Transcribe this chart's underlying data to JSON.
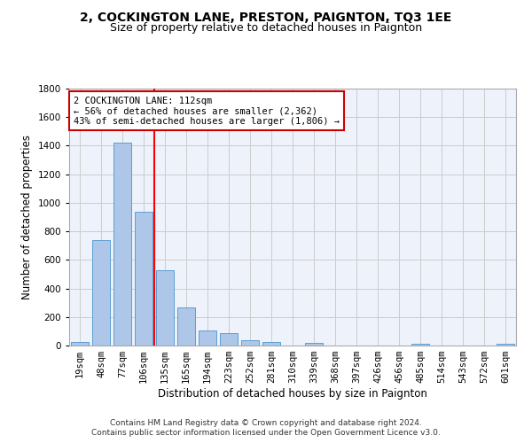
{
  "title1": "2, COCKINGTON LANE, PRESTON, PAIGNTON, TQ3 1EE",
  "title2": "Size of property relative to detached houses in Paignton",
  "xlabel": "Distribution of detached houses by size in Paignton",
  "ylabel": "Number of detached properties",
  "categories": [
    "19sqm",
    "48sqm",
    "77sqm",
    "106sqm",
    "135sqm",
    "165sqm",
    "194sqm",
    "223sqm",
    "252sqm",
    "281sqm",
    "310sqm",
    "339sqm",
    "368sqm",
    "397sqm",
    "426sqm",
    "456sqm",
    "485sqm",
    "514sqm",
    "543sqm",
    "572sqm",
    "601sqm"
  ],
  "values": [
    22,
    740,
    1420,
    940,
    530,
    265,
    103,
    90,
    38,
    27,
    0,
    18,
    0,
    0,
    0,
    0,
    15,
    0,
    0,
    0,
    13
  ],
  "bar_color": "#aec6e8",
  "bar_edge_color": "#5a9fd4",
  "red_line_x": 3.5,
  "annotation_text": "2 COCKINGTON LANE: 112sqm\n← 56% of detached houses are smaller (2,362)\n43% of semi-detached houses are larger (1,806) →",
  "annotation_box_color": "#ffffff",
  "annotation_box_edge": "#cc0000",
  "footer1": "Contains HM Land Registry data © Crown copyright and database right 2024.",
  "footer2": "Contains public sector information licensed under the Open Government Licence v3.0.",
  "ylim": [
    0,
    1800
  ],
  "yticks": [
    0,
    200,
    400,
    600,
    800,
    1000,
    1200,
    1400,
    1600,
    1800
  ],
  "bg_color": "#eef2fb",
  "grid_color": "#cccccc",
  "title1_fontsize": 10,
  "title2_fontsize": 9,
  "axis_label_fontsize": 8.5,
  "tick_fontsize": 7.5,
  "footer_fontsize": 6.5
}
